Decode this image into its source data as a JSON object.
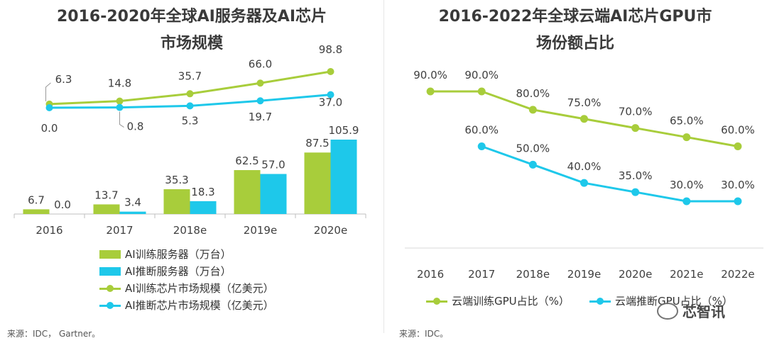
{
  "left": {
    "title_line1": "2016-2020年全球AI服务器及AI芯片",
    "title_line2": "市场规模",
    "source": "来源：IDC， Gartner。",
    "legend": [
      {
        "label": "AI训练服务器（万台）",
        "type": "bar",
        "color": "#a8cd3b"
      },
      {
        "label": "AI推断服务器（万台）",
        "type": "bar",
        "color": "#1ec8ea"
      },
      {
        "label": "AI训练芯片市场规模（亿美元）",
        "type": "line",
        "color": "#a8cd3b"
      },
      {
        "label": "AI推断芯片市场规模（亿美元）",
        "type": "line",
        "color": "#1ec8ea"
      }
    ]
  },
  "right": {
    "title_line1": "2016-2022年全球云端AI芯片GPU市",
    "title_line2": "场份额占比",
    "source": "来源：IDC。",
    "legend": [
      {
        "label": "云端训练GPU占比（%）",
        "color": "#a8cd3b"
      },
      {
        "label": "云端推断GPU占比（%）",
        "color": "#1ec8ea"
      }
    ]
  },
  "watermark": "芯智讯",
  "chart_data": [
    {
      "type": "bar+line",
      "title": "2016-2020年全球AI服务器及AI芯片市场规模",
      "categories": [
        "2016",
        "2017",
        "2018e",
        "2019e",
        "2020e"
      ],
      "bar_series": [
        {
          "name": "AI训练服务器（万台）",
          "color": "#a8cd3b",
          "values": [
            6.7,
            13.7,
            35.3,
            62.5,
            87.5
          ],
          "labels": [
            "6.7",
            "13.7",
            "35.3",
            "62.5",
            "87.5"
          ]
        },
        {
          "name": "AI推断服务器（万台）",
          "color": "#1ec8ea",
          "values": [
            0.0,
            3.4,
            18.3,
            57.0,
            105.9
          ],
          "labels": [
            "0.0",
            "3.4",
            "18.3",
            "57.0",
            "105.9"
          ]
        }
      ],
      "line_series": [
        {
          "name": "AI训练芯片市场规模（亿美元）",
          "color": "#a8cd3b",
          "values": [
            6.3,
            14.8,
            35.7,
            66.0,
            98.8
          ],
          "labels": [
            "6.3",
            "14.8",
            "35.7",
            "66.0",
            "98.8"
          ]
        },
        {
          "name": "AI推断芯片市场规模（亿美元）",
          "color": "#1ec8ea",
          "values": [
            0.0,
            0.8,
            5.3,
            19.7,
            37.0
          ],
          "labels": [
            "0.0",
            "0.8",
            "5.3",
            "19.7",
            "37.0"
          ]
        }
      ]
    },
    {
      "type": "line",
      "title": "2016-2022年全球云端AI芯片GPU市场份额占比",
      "categories": [
        "2016",
        "2017",
        "2018e",
        "2019e",
        "2020e",
        "2021e",
        "2022e"
      ],
      "series": [
        {
          "name": "云端训练GPU占比（%）",
          "color": "#a8cd3b",
          "values": [
            90.0,
            90.0,
            80.0,
            75.0,
            70.0,
            65.0,
            60.0
          ],
          "labels": [
            "90.0%",
            "90.0%",
            "80.0%",
            "75.0%",
            "70.0%",
            "65.0%",
            "60.0%"
          ]
        },
        {
          "name": "云端推断GPU占比（%）",
          "color": "#1ec8ea",
          "values": [
            null,
            60.0,
            50.0,
            40.0,
            35.0,
            30.0,
            30.0
          ],
          "labels": [
            null,
            "60.0%",
            "50.0%",
            "40.0%",
            "35.0%",
            "30.0%",
            "30.0%"
          ]
        }
      ]
    }
  ]
}
